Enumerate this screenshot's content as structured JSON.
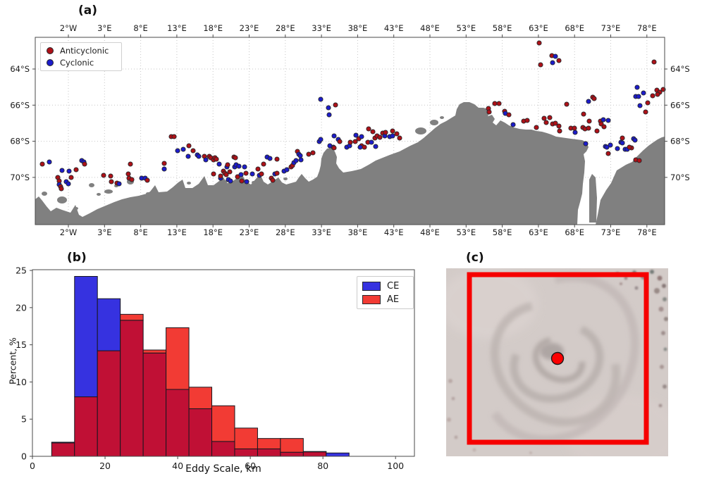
{
  "panel_a": {
    "label": "(a)",
    "legend": {
      "items": [
        {
          "label": "Anticyclonic",
          "color": "#ae1117"
        },
        {
          "label": "Cyclonic",
          "color": "#1c1ccb"
        }
      ]
    },
    "lon_ticks": [
      "2°W",
      "3°E",
      "8°E",
      "13°E",
      "18°E",
      "23°E",
      "28°E",
      "33°E",
      "38°E",
      "43°E",
      "48°E",
      "53°E",
      "58°E",
      "63°E",
      "68°E",
      "73°E",
      "78°E"
    ],
    "lat_ticks": [
      "64°S",
      "66°S",
      "68°S",
      "70°S"
    ],
    "colors": {
      "land": "#808080",
      "anticyclonic": "#ae1117",
      "cyclonic": "#1c1ccb",
      "grid": "#c6c6c6",
      "spine": "#4a4a4a"
    },
    "dots": [
      [
        10,
        180,
        0
      ],
      [
        20,
        177,
        1
      ],
      [
        32,
        199,
        0
      ],
      [
        34,
        204,
        0
      ],
      [
        34,
        209,
        1
      ],
      [
        36,
        212,
        0
      ],
      [
        37,
        215,
        0
      ],
      [
        38,
        189,
        1
      ],
      [
        48,
        190,
        1
      ],
      [
        44,
        205,
        1
      ],
      [
        47,
        208,
        1
      ],
      [
        51,
        199,
        0
      ],
      [
        58,
        188,
        0
      ],
      [
        66,
        175,
        1
      ],
      [
        69,
        177,
        1
      ],
      [
        70,
        180,
        0
      ],
      [
        97,
        196,
        0
      ],
      [
        107,
        197,
        0
      ],
      [
        108,
        205,
        0
      ],
      [
        116,
        207,
        0
      ],
      [
        119,
        208,
        1
      ],
      [
        132,
        194,
        0
      ],
      [
        133,
        200,
        0
      ],
      [
        137,
        202,
        0
      ],
      [
        151,
        200,
        1
      ],
      [
        156,
        200,
        1
      ],
      [
        159,
        203,
        0
      ],
      [
        135,
        180,
        0
      ],
      [
        183,
        179,
        0
      ],
      [
        183,
        187,
        1
      ],
      [
        193,
        141,
        0
      ],
      [
        197,
        141,
        0
      ],
      [
        202,
        161,
        1
      ],
      [
        210,
        159,
        1
      ],
      [
        218,
        154,
        0
      ],
      [
        217,
        169,
        1
      ],
      [
        224,
        161,
        0
      ],
      [
        230,
        167,
        1
      ],
      [
        232,
        169,
        1
      ],
      [
        240,
        169,
        0
      ],
      [
        242,
        174,
        1
      ],
      [
        247,
        169,
        0
      ],
      [
        249,
        171,
        0
      ],
      [
        253,
        174,
        0
      ],
      [
        255,
        171,
        0
      ],
      [
        261,
        180,
        1
      ],
      [
        257,
        173,
        0
      ],
      [
        253,
        194,
        0
      ],
      [
        263,
        200,
        1
      ],
      [
        263,
        197,
        0
      ],
      [
        267,
        190,
        0
      ],
      [
        269,
        193,
        0
      ],
      [
        271,
        195,
        0
      ],
      [
        272,
        184,
        1
      ],
      [
        273,
        181,
        0
      ],
      [
        276,
        191,
        0
      ],
      [
        274,
        202,
        1
      ],
      [
        277,
        204,
        1
      ],
      [
        282,
        170,
        0
      ],
      [
        283,
        184,
        1
      ],
      [
        284,
        171,
        0
      ],
      [
        285,
        181,
        1
      ],
      [
        287,
        198,
        0
      ],
      [
        289,
        183,
        1
      ],
      [
        292,
        195,
        1
      ],
      [
        297,
        184,
        1
      ],
      [
        299,
        193,
        0
      ],
      [
        300,
        205,
        1
      ],
      [
        293,
        204,
        0
      ],
      [
        308,
        194,
        1
      ],
      [
        316,
        187,
        0
      ],
      [
        318,
        196,
        1
      ],
      [
        321,
        194,
        0
      ],
      [
        324,
        180,
        0
      ],
      [
        329,
        170,
        1
      ],
      [
        333,
        172,
        1
      ],
      [
        335,
        200,
        0
      ],
      [
        337,
        203,
        0
      ],
      [
        340,
        194,
        1
      ],
      [
        343,
        193,
        0
      ],
      [
        343,
        173,
        0
      ],
      [
        353,
        190,
        1
      ],
      [
        357,
        188,
        1
      ],
      [
        363,
        184,
        0
      ],
      [
        365,
        182,
        0
      ],
      [
        367,
        178,
        1
      ],
      [
        370,
        175,
        1
      ],
      [
        372,
        162,
        0
      ],
      [
        374,
        166,
        1
      ],
      [
        376,
        168,
        1
      ],
      [
        377,
        174,
        1
      ],
      [
        388,
        166,
        0
      ],
      [
        394,
        164,
        0
      ],
      [
        403,
        148,
        1
      ],
      [
        405,
        145,
        1
      ],
      [
        405,
        88,
        1
      ],
      [
        416,
        100,
        1
      ],
      [
        426,
        96,
        0
      ],
      [
        417,
        110,
        1
      ],
      [
        424,
        140,
        1
      ],
      [
        430,
        145,
        1
      ],
      [
        432,
        148,
        0
      ],
      [
        418,
        154,
        1
      ],
      [
        423,
        156,
        1
      ],
      [
        424,
        157,
        0
      ],
      [
        442,
        156,
        1
      ],
      [
        446,
        154,
        1
      ],
      [
        447,
        149,
        0
      ],
      [
        455,
        139,
        1
      ],
      [
        454,
        148,
        0
      ],
      [
        459,
        144,
        0
      ],
      [
        463,
        141,
        1
      ],
      [
        463,
        154,
        0
      ],
      [
        461,
        156,
        1
      ],
      [
        467,
        156,
        0
      ],
      [
        473,
        130,
        0
      ],
      [
        472,
        149,
        0
      ],
      [
        477,
        149,
        1
      ],
      [
        479,
        134,
        0
      ],
      [
        482,
        143,
        0
      ],
      [
        483,
        155,
        1
      ],
      [
        485,
        140,
        0
      ],
      [
        489,
        142,
        0
      ],
      [
        493,
        136,
        0
      ],
      [
        496,
        140,
        1
      ],
      [
        497,
        135,
        0
      ],
      [
        503,
        141,
        1
      ],
      [
        507,
        140,
        1
      ],
      [
        507,
        133,
        0
      ],
      [
        513,
        137,
        0
      ],
      [
        517,
        143,
        0
      ],
      [
        652,
        94,
        0
      ],
      [
        658,
        94,
        0
      ],
      [
        643,
        101,
        0
      ],
      [
        644,
        106,
        0
      ],
      [
        666,
        105,
        0
      ],
      [
        667,
        108,
        1
      ],
      [
        672,
        110,
        0
      ],
      [
        678,
        124,
        1
      ],
      [
        693,
        119,
        0
      ],
      [
        698,
        118,
        0
      ],
      [
        711,
        128,
        0
      ],
      [
        722,
        115,
        0
      ],
      [
        725,
        121,
        0
      ],
      [
        730,
        114,
        0
      ],
      [
        734,
        123,
        0
      ],
      [
        738,
        122,
        0
      ],
      [
        743,
        126,
        0
      ],
      [
        744,
        133,
        0
      ],
      [
        754,
        95,
        0
      ],
      [
        760,
        129,
        0
      ],
      [
        765,
        129,
        0
      ],
      [
        766,
        135,
        1
      ],
      [
        777,
        128,
        0
      ],
      [
        778,
        109,
        0
      ],
      [
        780,
        130,
        0
      ],
      [
        785,
        129,
        0
      ],
      [
        786,
        119,
        0
      ],
      [
        797,
        133,
        0
      ],
      [
        802,
        119,
        0
      ],
      [
        803,
        123,
        0
      ],
      [
        806,
        117,
        1
      ],
      [
        813,
        118,
        1
      ],
      [
        807,
        127,
        0
      ],
      [
        791,
        85,
        0
      ],
      [
        793,
        87,
        0
      ],
      [
        785,
        91,
        1
      ],
      [
        715,
        8,
        0
      ],
      [
        733,
        26,
        0
      ],
      [
        738,
        27,
        1
      ],
      [
        743,
        33,
        0
      ],
      [
        734,
        36,
        1
      ],
      [
        717,
        39,
        0
      ],
      [
        781,
        151,
        1
      ],
      [
        813,
        165,
        0
      ],
      [
        809,
        155,
        1
      ],
      [
        811,
        156,
        1
      ],
      [
        826,
        158,
        1
      ],
      [
        831,
        149,
        1
      ],
      [
        833,
        143,
        0
      ],
      [
        837,
        159,
        1
      ],
      [
        840,
        159,
        1
      ],
      [
        846,
        157,
        0
      ],
      [
        849,
        144,
        1
      ],
      [
        851,
        146,
        1
      ],
      [
        852,
        174,
        0
      ],
      [
        857,
        175,
        0
      ],
      [
        816,
        153,
        1
      ],
      [
        833,
        150,
        1
      ],
      [
        843,
        156,
        0
      ],
      [
        878,
        35,
        0
      ],
      [
        854,
        71,
        1
      ],
      [
        852,
        84,
        1
      ],
      [
        856,
        84,
        1
      ],
      [
        863,
        79,
        1
      ],
      [
        882,
        75,
        0
      ],
      [
        886,
        78,
        0
      ],
      [
        891,
        74,
        0
      ],
      [
        876,
        83,
        0
      ],
      [
        883,
        81,
        0
      ],
      [
        858,
        97,
        1
      ],
      [
        869,
        93,
        0
      ],
      [
        866,
        106,
        0
      ]
    ]
  },
  "chart_data": {
    "type": "bar",
    "subtype": "overlaid-histogram",
    "panel_label": "(b)",
    "xlabel": "Eddy Scale, km",
    "ylabel": "Percent, %",
    "bin_start": 5.3,
    "bin_width": 6.3,
    "series": [
      {
        "name": "CE",
        "color": "#3632e0",
        "values": [
          1.9,
          24.2,
          21.2,
          18.3,
          13.9,
          9.0,
          6.4,
          2.0,
          1.0,
          1.0,
          0.55,
          0.6,
          0.45
        ]
      },
      {
        "name": "AE",
        "color": "#f23b34",
        "values": [
          1.8,
          8.0,
          14.2,
          19.1,
          14.3,
          17.3,
          9.3,
          6.8,
          3.8,
          2.4,
          2.4,
          0.65,
          0
        ]
      }
    ],
    "overlap_color": "#c01035",
    "edge_color": "#17171f",
    "xticks": [
      0,
      20,
      40,
      60,
      80,
      100
    ],
    "yticks": [
      0,
      5,
      10,
      15,
      20,
      25
    ],
    "xlim": [
      0,
      105.2
    ],
    "ylim": [
      0,
      25.1
    ],
    "grid": false,
    "legend_position": "upper right"
  },
  "panel_c": {
    "label": "(c)",
    "box_color": "#f60000",
    "dot_color": "#fb0000",
    "dot_edge": "#1a1a1a"
  }
}
